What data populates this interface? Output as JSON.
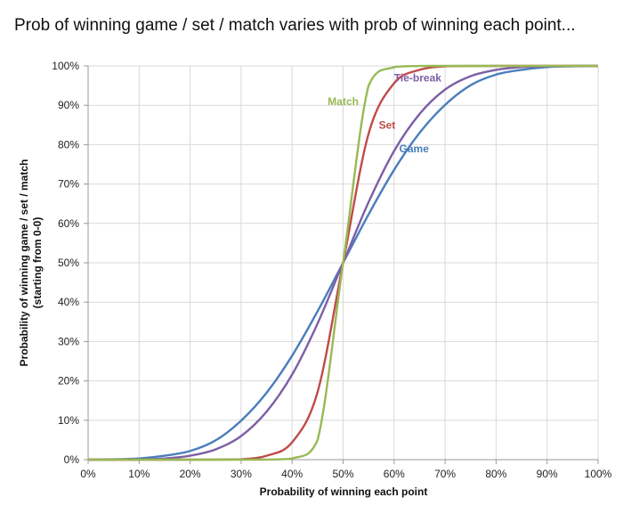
{
  "chart_data": {
    "type": "line",
    "title": "Prob of winning game / set / match varies with prob of winning each point...",
    "xlabel": "Probability of winning each point",
    "ylabel": "Probability of winning game / set / match",
    "ylabel2": "(starting from 0-0)",
    "xlim": [
      0,
      100
    ],
    "ylim": [
      0,
      100
    ],
    "grid": true,
    "legend": "inline labels",
    "x_ticks": [
      "0%",
      "10%",
      "20%",
      "30%",
      "40%",
      "50%",
      "60%",
      "70%",
      "80%",
      "90%",
      "100%"
    ],
    "y_ticks": [
      "0%",
      "10%",
      "20%",
      "30%",
      "40%",
      "50%",
      "60%",
      "70%",
      "80%",
      "90%",
      "100%"
    ],
    "x": [
      0,
      5,
      10,
      15,
      20,
      25,
      30,
      35,
      40,
      45,
      50,
      55,
      60,
      65,
      70,
      75,
      80,
      85,
      90,
      95,
      100
    ],
    "series": [
      {
        "name": "Game",
        "color": "#4a7ebb",
        "label_pos": [
          61,
          79
        ],
        "values": [
          0,
          0.1,
          0.3,
          1.0,
          2.2,
          4.9,
          9.9,
          17.0,
          26.4,
          37.7,
          50,
          62.3,
          73.6,
          83.0,
          90.1,
          95.1,
          97.8,
          99.0,
          99.7,
          99.9,
          100
        ]
      },
      {
        "name": "Tie-break",
        "color": "#7d5fa6",
        "label_pos": [
          60,
          97
        ],
        "values": [
          0,
          0,
          0.05,
          0.3,
          1.0,
          2.6,
          6.0,
          12.2,
          21.6,
          34.6,
          50,
          65.4,
          78.4,
          87.8,
          94.0,
          97.4,
          99.0,
          99.7,
          99.95,
          100,
          100
        ]
      },
      {
        "name": "Set",
        "color": "#be4b48",
        "label_pos": [
          57,
          85
        ],
        "values": [
          0,
          0,
          0,
          0,
          0,
          0.02,
          0.1,
          1.0,
          4.4,
          17.2,
          50,
          82.8,
          95.6,
          99.0,
          99.9,
          99.98,
          100,
          100,
          100,
          100,
          100
        ]
      },
      {
        "name": "Match",
        "color": "#98b954",
        "label_pos": [
          47,
          91
        ],
        "values": [
          0,
          0,
          0,
          0,
          0,
          0,
          0,
          0.02,
          0.3,
          5.0,
          50,
          95.0,
          99.7,
          99.98,
          100,
          100,
          100,
          100,
          100,
          100,
          100
        ]
      }
    ]
  }
}
